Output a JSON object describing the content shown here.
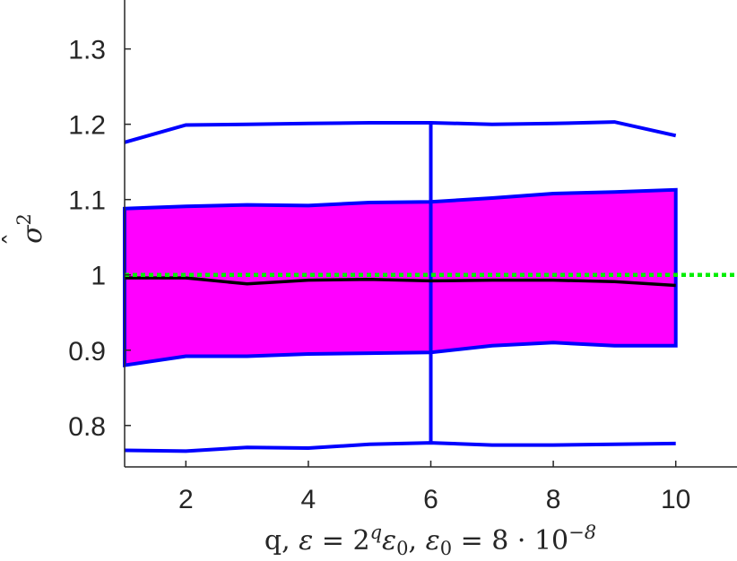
{
  "chart_data": {
    "type": "area",
    "xlabel": "q, ε = 2^q ε₀, ε₀ = 8 · 10^−8",
    "xlabel_parts": {
      "lead": "q, ",
      "eps": "ε",
      "eq1": " = 2",
      "sup_q": "q",
      "eps2": "ε",
      "sub0a": "0",
      "comma": ", ",
      "eps3": "ε",
      "sub0b": "0",
      "eq2": " = 8 · 10",
      "sup_exp": "−8"
    },
    "ylabel": "σ̂²",
    "ylabel_parts": {
      "hat": "ˆ",
      "sigma": "σ",
      "sup": "2"
    },
    "xlim": [
      1,
      11
    ],
    "ylim": [
      0.745,
      1.365
    ],
    "xticks": [
      2,
      4,
      6,
      8,
      10
    ],
    "xtick_labels": [
      "2",
      "4",
      "6",
      "8",
      "10"
    ],
    "yticks": [
      0.8,
      0.9,
      1.0,
      1.1,
      1.2,
      1.3
    ],
    "ytick_labels": [
      "0.8",
      "0.9",
      "1",
      "1.1",
      "1.2",
      "1.3"
    ],
    "grid": false,
    "x": [
      1,
      2,
      3,
      4,
      5,
      6,
      7,
      8,
      9,
      10
    ],
    "series": [
      {
        "role": "band_upper",
        "color": "#0000ff",
        "values": [
          1.088,
          1.091,
          1.093,
          1.092,
          1.096,
          1.097,
          1.102,
          1.108,
          1.11,
          1.113
        ]
      },
      {
        "role": "band_lower",
        "color": "#0000ff",
        "values": [
          0.88,
          0.892,
          0.892,
          0.895,
          0.896,
          0.897,
          0.906,
          0.91,
          0.906,
          0.906
        ]
      },
      {
        "role": "median",
        "color": "#000000",
        "values": [
          0.996,
          0.996,
          0.988,
          0.993,
          0.994,
          0.992,
          0.993,
          0.993,
          0.991,
          0.986
        ]
      },
      {
        "role": "max",
        "color": "#0000ff",
        "values": [
          1.176,
          1.199,
          1.2,
          1.201,
          1.202,
          1.202,
          1.2,
          1.201,
          1.203,
          1.185
        ]
      },
      {
        "role": "min",
        "color": "#0000ff",
        "values": [
          0.767,
          0.766,
          0.771,
          0.77,
          0.775,
          0.777,
          0.774,
          0.774,
          0.775,
          0.776
        ]
      }
    ],
    "band_fill_color": "#ff00ff",
    "reference_line": {
      "y": 1.0,
      "color": "#00ee00",
      "style": "dotted"
    },
    "whisker": {
      "x": 6,
      "from": 0.777,
      "to": 1.202,
      "color": "#0000ff"
    }
  }
}
